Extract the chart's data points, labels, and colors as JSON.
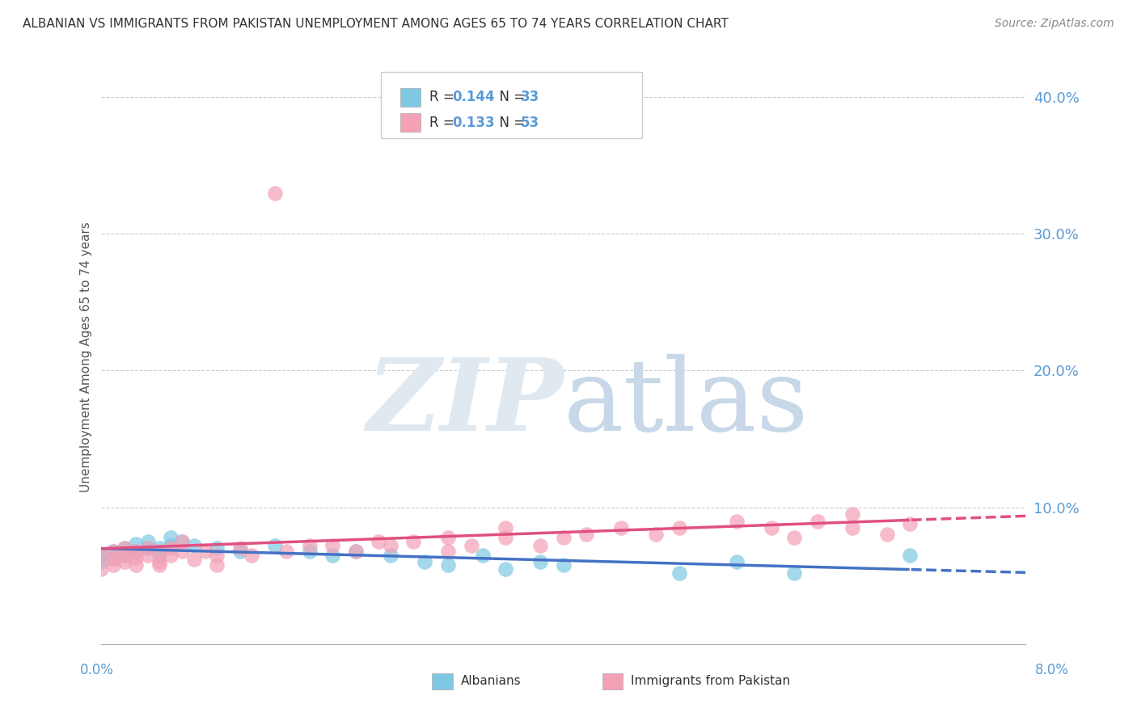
{
  "title": "ALBANIAN VS IMMIGRANTS FROM PAKISTAN UNEMPLOYMENT AMONG AGES 65 TO 74 YEARS CORRELATION CHART",
  "source": "Source: ZipAtlas.com",
  "ylabel": "Unemployment Among Ages 65 to 74 years",
  "xlim": [
    0.0,
    0.08
  ],
  "ylim": [
    0.0,
    0.42
  ],
  "color_albanian": "#7ec8e3",
  "color_pakistan": "#f4a0b5",
  "color_line_albanian": "#4472c4",
  "color_line_pakistan": "#e05080",
  "alb_x": [
    0.0,
    0.0,
    0.001,
    0.001,
    0.002,
    0.002,
    0.003,
    0.003,
    0.004,
    0.004,
    0.005,
    0.005,
    0.006,
    0.006,
    0.007,
    0.008,
    0.01,
    0.012,
    0.015,
    0.018,
    0.02,
    0.022,
    0.025,
    0.028,
    0.03,
    0.033,
    0.035,
    0.038,
    0.04,
    0.05,
    0.055,
    0.06,
    0.07
  ],
  "alb_y": [
    0.06,
    0.065,
    0.063,
    0.068,
    0.065,
    0.07,
    0.068,
    0.073,
    0.07,
    0.075,
    0.065,
    0.07,
    0.072,
    0.078,
    0.075,
    0.072,
    0.07,
    0.068,
    0.072,
    0.068,
    0.065,
    0.068,
    0.065,
    0.06,
    0.058,
    0.065,
    0.055,
    0.06,
    0.058,
    0.052,
    0.06,
    0.052,
    0.065
  ],
  "pak_x": [
    0.0,
    0.0,
    0.001,
    0.001,
    0.001,
    0.002,
    0.002,
    0.002,
    0.003,
    0.003,
    0.003,
    0.004,
    0.004,
    0.005,
    0.005,
    0.005,
    0.006,
    0.006,
    0.007,
    0.007,
    0.008,
    0.009,
    0.01,
    0.01,
    0.012,
    0.013,
    0.015,
    0.016,
    0.018,
    0.02,
    0.022,
    0.024,
    0.025,
    0.027,
    0.03,
    0.03,
    0.032,
    0.035,
    0.035,
    0.038,
    0.04,
    0.042,
    0.045,
    0.048,
    0.05,
    0.055,
    0.058,
    0.06,
    0.062,
    0.065,
    0.065,
    0.068,
    0.07
  ],
  "pak_y": [
    0.055,
    0.065,
    0.062,
    0.068,
    0.058,
    0.065,
    0.07,
    0.06,
    0.063,
    0.068,
    0.058,
    0.065,
    0.07,
    0.06,
    0.068,
    0.058,
    0.065,
    0.07,
    0.068,
    0.075,
    0.062,
    0.068,
    0.065,
    0.058,
    0.07,
    0.065,
    0.33,
    0.068,
    0.072,
    0.072,
    0.068,
    0.075,
    0.072,
    0.075,
    0.068,
    0.078,
    0.072,
    0.078,
    0.085,
    0.072,
    0.078,
    0.08,
    0.085,
    0.08,
    0.085,
    0.09,
    0.085,
    0.078,
    0.09,
    0.085,
    0.095,
    0.08,
    0.088
  ]
}
